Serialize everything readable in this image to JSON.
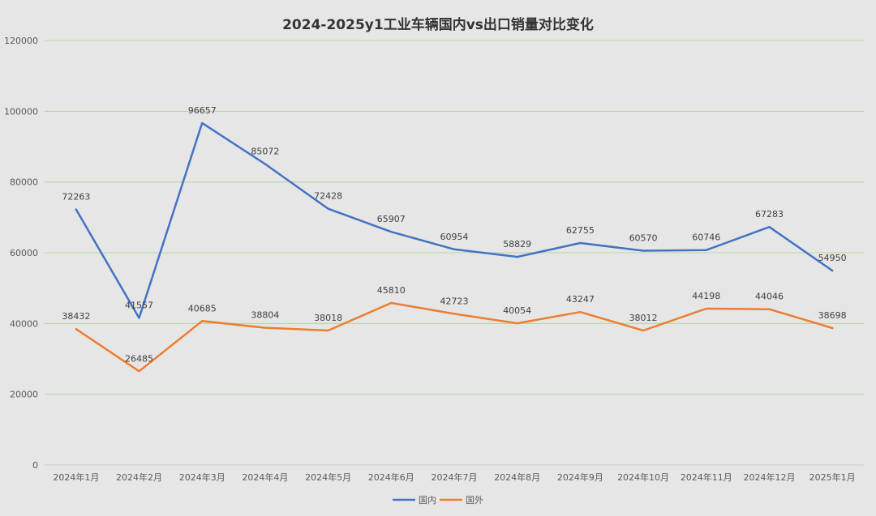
{
  "chart_data": {
    "type": "line",
    "title": "2024-2025y1工业车辆国内vs出口销量对比变化",
    "xlabel": "",
    "ylabel": "",
    "categories": [
      "2024年1月",
      "2024年2月",
      "2024年3月",
      "2024年4月",
      "2024年5月",
      "2024年6月",
      "2024年7月",
      "2024年8月",
      "2024年9月",
      "2024年10月",
      "2024年11月",
      "2024年12月",
      "2025年1月"
    ],
    "ylim": [
      0,
      120000
    ],
    "yticks": [
      0,
      20000,
      40000,
      60000,
      80000,
      100000,
      120000
    ],
    "grid": true,
    "legend_position": "bottom",
    "series": [
      {
        "name": "国内",
        "color": "#4472c4",
        "values": [
          72263,
          41557,
          96657,
          85072,
          72428,
          65907,
          60954,
          58829,
          62755,
          60570,
          60746,
          67283,
          54950
        ]
      },
      {
        "name": "国外",
        "color": "#ed7d31",
        "values": [
          38432,
          26485,
          40685,
          38804,
          38018,
          45810,
          42723,
          40054,
          43247,
          38012,
          44198,
          44046,
          38698
        ]
      }
    ]
  }
}
